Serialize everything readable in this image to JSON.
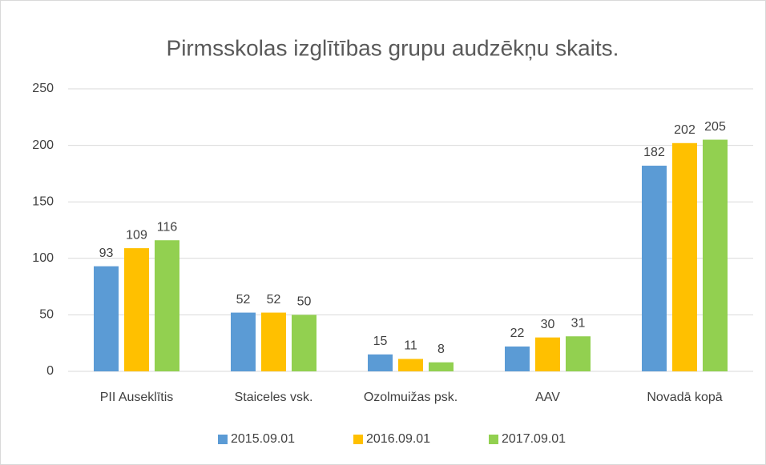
{
  "chart_data": {
    "type": "bar",
    "title": "Pirmsskolas izglītības grupu audzēkņu skaits.",
    "categories": [
      "PII Auseklītis",
      "Staiceles vsk.",
      "Ozolmuižas psk.",
      "AAV",
      "Novadā kopā"
    ],
    "series": [
      {
        "name": "2015.09.01",
        "color": "#5b9bd5",
        "values": [
          93,
          52,
          15,
          22,
          182
        ]
      },
      {
        "name": "2016.09.01",
        "color": "#ffc000",
        "values": [
          109,
          52,
          11,
          30,
          202
        ]
      },
      {
        "name": "2017.09.01",
        "color": "#92d050",
        "values": [
          116,
          50,
          8,
          31,
          205
        ]
      }
    ],
    "ylim": [
      0,
      250
    ],
    "yticks": [
      0,
      50,
      100,
      150,
      200,
      250
    ],
    "grid": true,
    "legend": "bottom"
  }
}
